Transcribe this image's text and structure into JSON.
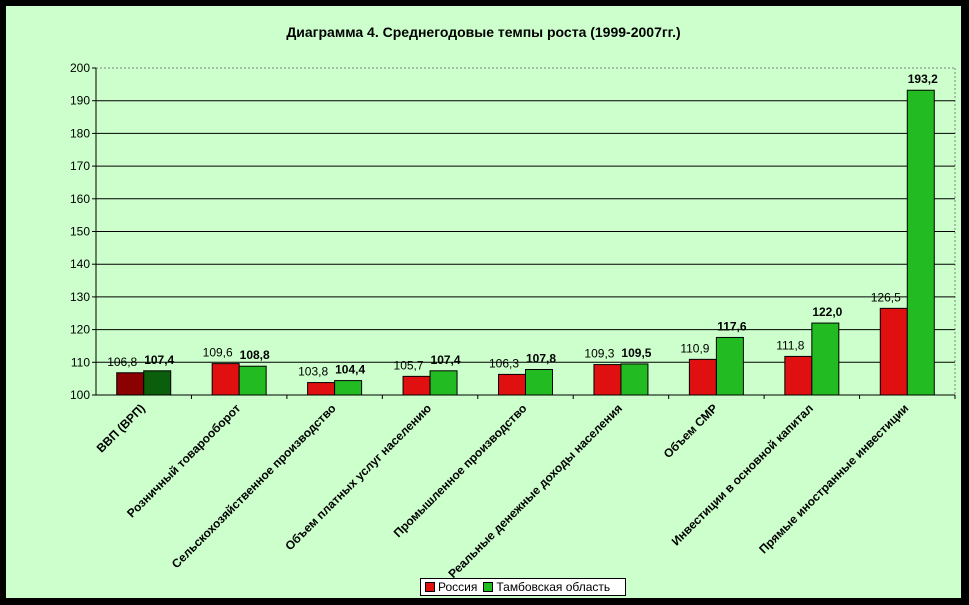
{
  "colors": {
    "background": "#ccffcc",
    "russia": "#e01010",
    "tambov": "#22bb22",
    "russia_first": "#8b0000",
    "tambov_first": "#0b5e0b"
  },
  "chart_data": {
    "type": "bar",
    "title": "Диаграмма 4. Среднегодовые темпы роста (1999-2007гг.)",
    "xlabel": "",
    "ylabel": "",
    "ylim": [
      100,
      200
    ],
    "yticks": [
      "100",
      "110",
      "120",
      "130",
      "140",
      "150",
      "160",
      "170",
      "180",
      "190",
      "200"
    ],
    "grid": true,
    "legend_position": "bottom",
    "categories": [
      "ВВП (ВРП)",
      "Розничный товарооборот",
      "Сельскохозяйственное производство",
      "Объем платных услуг населению",
      "Промышленное производство",
      "Реальные денежные доходы населения",
      "Объем СМР",
      "Инвестиции в основной капитал",
      "Прямые иностранные инвестиции"
    ],
    "series": [
      {
        "name": "Россия",
        "values": [
          106.8,
          109.6,
          103.8,
          105.7,
          106.3,
          109.3,
          110.9,
          111.8,
          126.5
        ],
        "labels": [
          "106,8",
          "109,6",
          "103,8",
          "105,7",
          "106,3",
          "109,3",
          "110,9",
          "111,8",
          "126,5"
        ]
      },
      {
        "name": "Тамбовская область",
        "values": [
          107.4,
          108.8,
          104.4,
          107.4,
          107.8,
          109.5,
          117.6,
          122.0,
          193.2
        ],
        "labels": [
          "107,4",
          "108,8",
          "104,4",
          "107,4",
          "107,8",
          "109,5",
          "117,6",
          "122,0",
          "193,2"
        ]
      }
    ]
  }
}
